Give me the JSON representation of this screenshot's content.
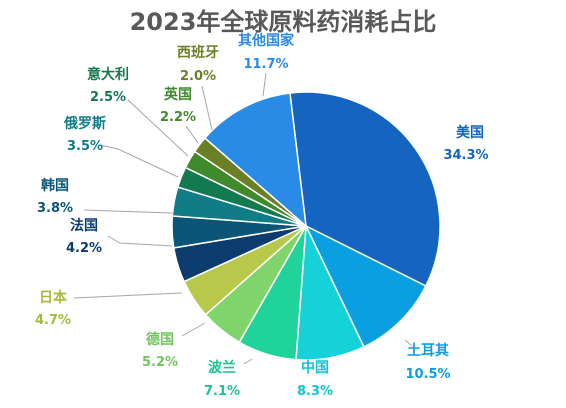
{
  "chart_data": {
    "type": "pie",
    "title": "2023年全球原料药消耗占比",
    "slices": [
      {
        "label": "美国",
        "value_label": "34.3%",
        "value": 34.3,
        "color": "#1565C0",
        "label_color": "#1565C0"
      },
      {
        "label": "土耳其",
        "value_label": "10.5%",
        "value": 10.5,
        "color": "#0A9FE0",
        "label_color": "#0A9FE0"
      },
      {
        "label": "中国",
        "value_label": "8.3%",
        "value": 8.3,
        "color": "#14D2D8",
        "label_color": "#14C4D0"
      },
      {
        "label": "波兰",
        "value_label": "7.1%",
        "value": 7.1,
        "color": "#1FD39A",
        "label_color": "#1CC394"
      },
      {
        "label": "德国",
        "value_label": "5.2%",
        "value": 5.2,
        "color": "#7FD46C",
        "label_color": "#72C460"
      },
      {
        "label": "日本",
        "value_label": "4.7%",
        "value": 4.7,
        "color": "#B7C84A",
        "label_color": "#A8B83E"
      },
      {
        "label": "法国",
        "value_label": "4.2%",
        "value": 4.2,
        "color": "#0C3C6E",
        "label_color": "#0C3C6E"
      },
      {
        "label": "韩国",
        "value_label": "3.8%",
        "value": 3.8,
        "color": "#0B5577",
        "label_color": "#0B5577"
      },
      {
        "label": "俄罗斯",
        "value_label": "3.5%",
        "value": 3.5,
        "color": "#107C86",
        "label_color": "#107C86"
      },
      {
        "label": "意大利",
        "value_label": "2.5%",
        "value": 2.5,
        "color": "#137A50",
        "label_color": "#137A50"
      },
      {
        "label": "英国",
        "value_label": "2.2%",
        "value": 2.2,
        "color": "#3F8A2B",
        "label_color": "#3F8A2B"
      },
      {
        "label": "西班牙",
        "value_label": "2.0%",
        "value": 2.0,
        "color": "#6A7F26",
        "label_color": "#6A7F26"
      },
      {
        "label": "其他国家",
        "value_label": "11.7%",
        "value": 11.7,
        "color": "#2A8BE6",
        "label_color": "#2A8BE6"
      }
    ],
    "legend": "none"
  }
}
